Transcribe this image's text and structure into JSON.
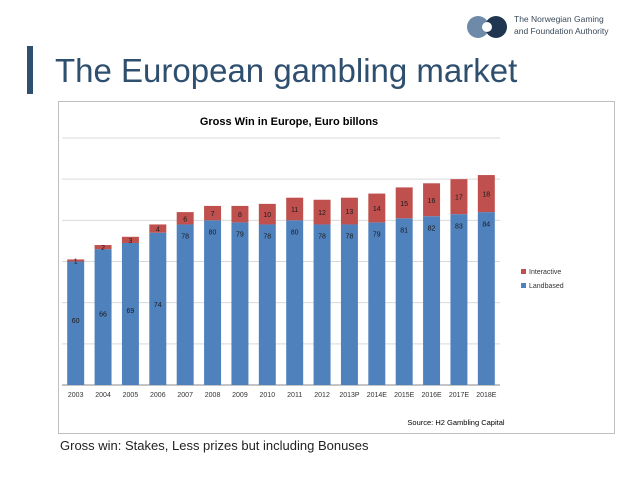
{
  "logo": {
    "line1": "The Norwegian Gaming",
    "line2": "and Foundation Authority"
  },
  "slide": {
    "title": "The European gambling market",
    "footnote": "Gross win: Stakes, Less prizes but including Bonuses"
  },
  "colors": {
    "landbased": "#4f81bd",
    "interactive": "#c0504d",
    "title": "#2f4f6f"
  },
  "chart_data": {
    "type": "bar",
    "stacked": true,
    "title": "Gross Win in Europe, Euro billons",
    "source": "Source: H2 Gambling Capital",
    "categories": [
      "2003",
      "2004",
      "2005",
      "2006",
      "2007",
      "2008",
      "2009",
      "2010",
      "2011",
      "2012",
      "2013P",
      "2014E",
      "2015E",
      "2016E",
      "2017E",
      "2018E"
    ],
    "series": [
      {
        "name": "Landbased",
        "values": [
          60,
          66,
          69,
          74,
          78,
          80,
          79,
          78,
          80,
          78,
          78,
          79,
          81,
          82,
          83,
          84
        ]
      },
      {
        "name": "Interactive",
        "values": [
          1,
          2,
          3,
          4,
          6,
          7,
          8,
          10,
          11,
          12,
          13,
          14,
          15,
          16,
          17,
          18
        ]
      }
    ],
    "ylim": [
      0,
      120
    ],
    "yticks": [
      0,
      20,
      40,
      60,
      80,
      100,
      120
    ],
    "grid": true,
    "legend_position": "right"
  }
}
